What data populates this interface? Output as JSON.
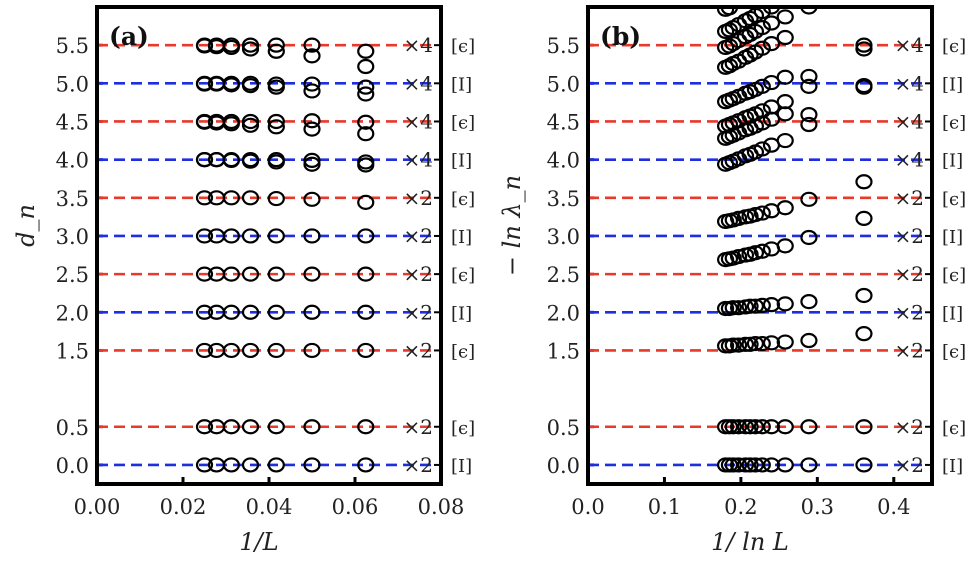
{
  "chart_data": [
    {
      "type": "scatter",
      "panel_label": "(a)",
      "title": "",
      "xlabel": "1/L",
      "ylabel": "d_n",
      "xlim": [
        0.0,
        0.08
      ],
      "ylim": [
        -0.25,
        6.0
      ],
      "xticks": [
        "0.00",
        "0.02",
        "0.04",
        "0.06",
        "0.08"
      ],
      "xtick_values": [
        0.0,
        0.02,
        0.04,
        0.06,
        0.08
      ],
      "yticks": [
        "0.0",
        "0.5",
        "1.5",
        "2.0",
        "2.5",
        "3.0",
        "3.5",
        "4.0",
        "4.5",
        "5.0",
        "5.5"
      ],
      "ytick_values": [
        0.0,
        0.5,
        1.5,
        2.0,
        2.5,
        3.0,
        3.5,
        4.0,
        4.5,
        5.0,
        5.5
      ],
      "grid": false,
      "reference_lines": [
        {
          "y": 0.0,
          "color": "#1f2ee0",
          "degeneracy": "×2",
          "sector": "[I]"
        },
        {
          "y": 0.5,
          "color": "#e8392b",
          "degeneracy": "×2",
          "sector": "[ϵ]"
        },
        {
          "y": 1.5,
          "color": "#e8392b",
          "degeneracy": "×2",
          "sector": "[ϵ]"
        },
        {
          "y": 2.0,
          "color": "#1f2ee0",
          "degeneracy": "×2",
          "sector": "[I]"
        },
        {
          "y": 2.5,
          "color": "#e8392b",
          "degeneracy": "×2",
          "sector": "[ϵ]"
        },
        {
          "y": 3.0,
          "color": "#1f2ee0",
          "degeneracy": "×2",
          "sector": "[I]"
        },
        {
          "y": 3.5,
          "color": "#e8392b",
          "degeneracy": "×2",
          "sector": "[ϵ]"
        },
        {
          "y": 4.0,
          "color": "#1f2ee0",
          "degeneracy": "×4",
          "sector": "[I]"
        },
        {
          "y": 4.5,
          "color": "#e8392b",
          "degeneracy": "×4",
          "sector": "[ϵ]"
        },
        {
          "y": 5.0,
          "color": "#1f2ee0",
          "degeneracy": "×4",
          "sector": "[I]"
        },
        {
          "y": 5.5,
          "color": "#e8392b",
          "degeneracy": "×4",
          "sector": "[ϵ]"
        }
      ],
      "x": [
        0.025,
        0.0278,
        0.03125,
        0.0357,
        0.0417,
        0.05,
        0.0625
      ],
      "series": [
        {
          "name": "level-0.0",
          "values": [
            0.0,
            0.0,
            0.0,
            0.0,
            0.0,
            0.0,
            0.0
          ]
        },
        {
          "name": "level-0.5",
          "values": [
            0.5,
            0.5,
            0.5,
            0.5,
            0.5,
            0.5,
            0.5
          ]
        },
        {
          "name": "level-1.5",
          "values": [
            1.5,
            1.5,
            1.5,
            1.5,
            1.5,
            1.5,
            1.5
          ]
        },
        {
          "name": "level-2.0",
          "values": [
            2.0,
            2.0,
            2.0,
            2.0,
            2.0,
            2.0,
            2.0
          ]
        },
        {
          "name": "level-2.5",
          "values": [
            2.5,
            2.5,
            2.5,
            2.5,
            2.5,
            2.5,
            2.5
          ]
        },
        {
          "name": "level-3.0",
          "values": [
            3.0,
            3.0,
            3.0,
            3.0,
            3.0,
            3.0,
            3.0
          ]
        },
        {
          "name": "level-3.5",
          "values": [
            3.5,
            3.5,
            3.5,
            3.5,
            3.49,
            3.48,
            3.44
          ]
        },
        {
          "name": "level-4.0a",
          "values": [
            4.0,
            4.0,
            4.0,
            4.0,
            4.0,
            3.99,
            3.97
          ]
        },
        {
          "name": "level-4.0b",
          "values": [
            4.0,
            4.0,
            3.99,
            3.98,
            3.97,
            3.94,
            3.93
          ]
        },
        {
          "name": "level-4.5a",
          "values": [
            4.5,
            4.5,
            4.5,
            4.5,
            4.5,
            4.51,
            4.49
          ]
        },
        {
          "name": "level-4.5b",
          "values": [
            4.49,
            4.48,
            4.47,
            4.45,
            4.43,
            4.4,
            4.34
          ]
        },
        {
          "name": "level-5.0a",
          "values": [
            5.0,
            5.0,
            5.0,
            5.0,
            4.99,
            4.99,
            4.95
          ]
        },
        {
          "name": "level-5.0b",
          "values": [
            4.99,
            4.99,
            4.98,
            4.97,
            4.95,
            4.9,
            4.86
          ]
        },
        {
          "name": "level-5.5a",
          "values": [
            5.5,
            5.5,
            5.5,
            5.5,
            5.5,
            5.5,
            5.42
          ]
        },
        {
          "name": "level-5.5b",
          "values": [
            5.49,
            5.48,
            5.47,
            5.45,
            5.42,
            5.36,
            5.22
          ]
        }
      ]
    },
    {
      "type": "scatter",
      "panel_label": "(b)",
      "title": "",
      "xlabel": "1/ ln L",
      "ylabel": "− ln λ_n",
      "xlim": [
        0.0,
        0.45
      ],
      "ylim": [
        -0.25,
        6.0
      ],
      "xticks": [
        "0.0",
        "0.1",
        "0.2",
        "0.3",
        "0.4"
      ],
      "xtick_values": [
        0.0,
        0.1,
        0.2,
        0.3,
        0.4
      ],
      "yticks": [
        "0.0",
        "0.5",
        "1.5",
        "2.0",
        "2.5",
        "3.0",
        "3.5",
        "4.0",
        "4.5",
        "5.0",
        "5.5"
      ],
      "ytick_values": [
        0.0,
        0.5,
        1.5,
        2.0,
        2.5,
        3.0,
        3.5,
        4.0,
        4.5,
        5.0,
        5.5
      ],
      "grid": false,
      "reference_lines": [
        {
          "y": 0.0,
          "color": "#1f2ee0",
          "degeneracy": "×2",
          "sector": "[I]"
        },
        {
          "y": 0.5,
          "color": "#e8392b",
          "degeneracy": "×2",
          "sector": "[ϵ]"
        },
        {
          "y": 1.5,
          "color": "#e8392b",
          "degeneracy": "×2",
          "sector": "[ϵ]"
        },
        {
          "y": 2.0,
          "color": "#1f2ee0",
          "degeneracy": "×2",
          "sector": "[I]"
        },
        {
          "y": 2.5,
          "color": "#e8392b",
          "degeneracy": "×2",
          "sector": "[ϵ]"
        },
        {
          "y": 3.0,
          "color": "#1f2ee0",
          "degeneracy": "×2",
          "sector": "[I]"
        },
        {
          "y": 3.5,
          "color": "#e8392b",
          "degeneracy": "×2",
          "sector": "[ϵ]"
        },
        {
          "y": 4.0,
          "color": "#1f2ee0",
          "degeneracy": "×4",
          "sector": "[I]"
        },
        {
          "y": 4.5,
          "color": "#e8392b",
          "degeneracy": "×4",
          "sector": "[ϵ]"
        },
        {
          "y": 5.0,
          "color": "#1f2ee0",
          "degeneracy": "×4",
          "sector": "[I]"
        },
        {
          "y": 5.5,
          "color": "#e8392b",
          "degeneracy": "×4",
          "sector": "[ϵ]"
        }
      ],
      "x": [
        0.18,
        0.185,
        0.19,
        0.197,
        0.206,
        0.212,
        0.219,
        0.228,
        0.24,
        0.258,
        0.289,
        0.361
      ],
      "series": [
        {
          "name": "level-0.0",
          "values": [
            0.0,
            0.0,
            0.0,
            0.0,
            0.0,
            0.0,
            0.0,
            0.0,
            0.0,
            0.0,
            0.0,
            0.0
          ]
        },
        {
          "name": "level-0.5",
          "values": [
            0.5,
            0.5,
            0.5,
            0.5,
            0.5,
            0.5,
            0.5,
            0.5,
            0.5,
            0.5,
            0.5,
            0.5
          ]
        },
        {
          "name": "level-1.5",
          "values": [
            1.56,
            1.56,
            1.57,
            1.57,
            1.58,
            1.58,
            1.59,
            1.59,
            1.6,
            1.61,
            1.63,
            1.72
          ]
        },
        {
          "name": "level-2.0",
          "values": [
            2.05,
            2.05,
            2.06,
            2.06,
            2.07,
            2.08,
            2.08,
            2.09,
            2.1,
            2.11,
            2.14,
            2.22
          ]
        },
        {
          "name": "level-2.7",
          "values": [
            2.69,
            2.7,
            2.71,
            2.73,
            2.75,
            2.76,
            2.78,
            2.8,
            2.83,
            2.87,
            2.98,
            3.23
          ]
        },
        {
          "name": "level-3.2",
          "values": [
            3.19,
            3.2,
            3.21,
            3.23,
            3.25,
            3.26,
            3.28,
            3.3,
            3.33,
            3.37,
            3.48,
            3.71
          ]
        },
        {
          "name": "level-3.9",
          "values": [
            3.94,
            3.96,
            3.98,
            4.01,
            4.05,
            4.07,
            4.1,
            4.14,
            4.19,
            4.25,
            4.46,
            4.97
          ]
        },
        {
          "name": "level-4.3",
          "values": [
            4.28,
            4.3,
            4.32,
            4.35,
            4.39,
            4.41,
            4.44,
            4.48,
            4.53,
            4.6,
            4.59,
            4.95
          ]
        },
        {
          "name": "level-4.4",
          "values": [
            4.44,
            4.46,
            4.48,
            4.51,
            4.55,
            4.57,
            4.6,
            4.64,
            4.69,
            4.76,
            4.96,
            5.5
          ]
        },
        {
          "name": "level-4.8",
          "values": [
            4.76,
            4.78,
            4.8,
            4.83,
            4.87,
            4.89,
            4.92,
            4.96,
            5.01,
            5.08,
            5.09,
            5.45
          ]
        },
        {
          "name": "level-5.2",
          "values": [
            5.21,
            5.23,
            5.26,
            5.29,
            5.34,
            5.37,
            5.41,
            5.46,
            5.52,
            5.6,
            6.0,
            null
          ]
        },
        {
          "name": "level-5.5",
          "values": [
            5.47,
            5.49,
            5.52,
            5.56,
            5.61,
            5.64,
            5.68,
            5.73,
            5.79,
            5.87,
            null,
            null
          ]
        },
        {
          "name": "level-5.7",
          "values": [
            5.68,
            5.7,
            5.73,
            5.77,
            5.82,
            5.85,
            5.89,
            5.94,
            6.0,
            null,
            null,
            null
          ]
        },
        {
          "name": "level-5.97",
          "values": [
            5.97,
            5.99,
            null,
            null,
            null,
            null,
            null,
            null,
            null,
            null,
            null,
            null
          ]
        }
      ]
    }
  ]
}
